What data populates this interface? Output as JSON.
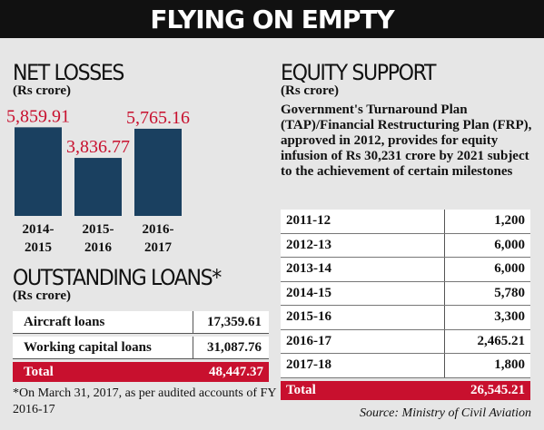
{
  "title": "FLYING ON EMPTY",
  "net_losses": {
    "heading": "NET LOSSES",
    "unit": "(Rs crore)"
  },
  "chart_data": {
    "type": "bar",
    "title": "NET LOSSES",
    "ylabel": "(Rs crore)",
    "categories": [
      [
        "2014-",
        "2015"
      ],
      [
        "2015-",
        "2016"
      ],
      [
        "2016-",
        "2017"
      ]
    ],
    "values": [
      5859.91,
      3836.77,
      5765.16
    ],
    "value_labels": [
      "5,859.91",
      "3,836.77",
      "5,765.16"
    ],
    "bar_color": "#1a4060",
    "label_color": "#c8102e",
    "ylim": [
      0,
      6000
    ],
    "grid": false
  },
  "loans": {
    "heading": "OUTSTANDING LOANS*",
    "unit": "(Rs crore)",
    "rows": [
      {
        "label": "Aircraft loans",
        "value": "17,359.61"
      },
      {
        "label": "Working capital loans",
        "value": "31,087.76"
      }
    ],
    "total": {
      "label": "Total",
      "value": "48,447.37"
    },
    "footnote": "*On March 31, 2017, as per audited accounts of FY 2016-17"
  },
  "equity": {
    "heading": "EQUITY SUPPORT",
    "unit": "(Rs crore)",
    "description": "Government's Turnaround Plan (TAP)/Financial Restructuring Plan (FRP), approved in 2012, provides for equity infusion of Rs 30,231 crore by 2021 subject to the achievement of certain milestones",
    "rows": [
      {
        "label": "2011-12",
        "value": "1,200"
      },
      {
        "label": "2012-13",
        "value": "6,000"
      },
      {
        "label": "2013-14",
        "value": "6,000"
      },
      {
        "label": "2014-15",
        "value": "5,780"
      },
      {
        "label": "2015-16",
        "value": "3,300"
      },
      {
        "label": "2016-17",
        "value": "2,465.21"
      },
      {
        "label": "2017-18",
        "value": "1,800"
      }
    ],
    "total": {
      "label": "Total",
      "value": "26,545.21"
    }
  },
  "source": "Source: Ministry of Civil Aviation",
  "colors": {
    "accent_red": "#c8102e",
    "bar_blue": "#1a4060",
    "background": "#e6e6e6"
  }
}
